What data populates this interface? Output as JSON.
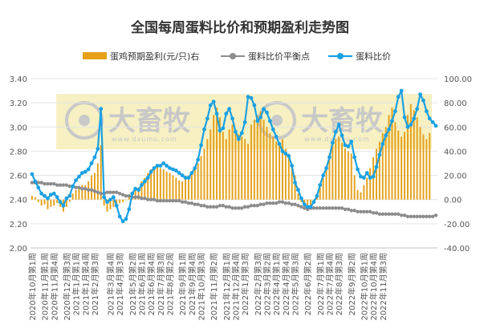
{
  "chart_data": {
    "type": "combo-bar-line",
    "title": "全国每周蛋料比价和预期盈利走势图",
    "legend_position": "top",
    "watermark": {
      "brand": "大畜牧",
      "url": "www.dxumu.com"
    },
    "y_left": {
      "min": 2.0,
      "max": 3.4,
      "step": 0.2,
      "ticks": [
        "2.00",
        "2.20",
        "2.40",
        "2.60",
        "2.80",
        "3.00",
        "3.20",
        "3.40"
      ]
    },
    "y_right": {
      "min": -40,
      "max": 100,
      "step": 20,
      "ticks": [
        "-40.00",
        "-20.00",
        "0.00",
        "20.00",
        "40.00",
        "60.00",
        "80.00",
        "100.00"
      ]
    },
    "x_labels": [
      "2020年10月第1周",
      "2020年11月第1周",
      "2020年11月第4周",
      "2020年12月第3周",
      "2021年1月第1周",
      "2021年1月第4周",
      "2021年2月第3周",
      "2021年3月第4周",
      "2021年4月第3周",
      "2021年5月第2周",
      "2021年6月第1周",
      "2021年6月第4周",
      "2021年7月第3周",
      "2021年8月第2周",
      "2021年9月第1周",
      "2021年9月第4周",
      "2021年10月第3周",
      "2021年11月第2周",
      "2021年12月第1周",
      "2021年12月第4周",
      "2022年1月第3周",
      "2022年2月第3周",
      "2022年3月第2周",
      "2022年4月第1周",
      "2022年4月第4周",
      "2022年5月第3周",
      "2022年6月第2周",
      "2022年7月第1周",
      "2022年7月第4周",
      "2022年8月第3周",
      "2022年9月第2周",
      "2022年10月第1周",
      "2022年10月第4周",
      "2022年11月第3周"
    ],
    "x_label_index": [
      0,
      4,
      7,
      11,
      14,
      17,
      20,
      25,
      28,
      32,
      35,
      38,
      41,
      44,
      48,
      51,
      54,
      58,
      62,
      65,
      68,
      72,
      75,
      78,
      81,
      84,
      88,
      92,
      95,
      98,
      102,
      106,
      109,
      112
    ],
    "series": [
      {
        "name": "蛋鸡预期盈利(元/只)右",
        "type": "bar",
        "axis": "right",
        "color": "#E6A119",
        "values": [
          3,
          2,
          -2,
          -5,
          -4,
          -8,
          -6,
          -5,
          -3,
          -6,
          -10,
          -6,
          -2,
          5,
          8,
          10,
          12,
          12,
          15,
          20,
          22,
          30,
          45,
          -5,
          -10,
          -8,
          -6,
          -5,
          -3,
          -2,
          0,
          2,
          4,
          8,
          10,
          15,
          18,
          22,
          25,
          27,
          28,
          26,
          25,
          23,
          22,
          20,
          18,
          16,
          15,
          17,
          20,
          22,
          25,
          30,
          36,
          42,
          50,
          58,
          70,
          76,
          68,
          56,
          50,
          58,
          62,
          58,
          54,
          52,
          50,
          46,
          62,
          66,
          70,
          73,
          66,
          60,
          55,
          52,
          48,
          45,
          50,
          42,
          38,
          30,
          20,
          5,
          -2,
          -4,
          -6,
          -5,
          0,
          4,
          10,
          18,
          28,
          38,
          46,
          50,
          52,
          47,
          42,
          40,
          38,
          20,
          8,
          6,
          12,
          18,
          26,
          35,
          42,
          48,
          55,
          60,
          70,
          76,
          64,
          57,
          52,
          56,
          70,
          79,
          74,
          68,
          60,
          54,
          50,
          55
        ]
      },
      {
        "name": "蛋料比价平衡点",
        "type": "line",
        "axis": "left",
        "color": "#8C8C8C",
        "values": [
          2.54,
          2.54,
          2.54,
          2.54,
          2.53,
          2.53,
          2.53,
          2.53,
          2.52,
          2.52,
          2.52,
          2.52,
          2.51,
          2.51,
          2.5,
          2.5,
          2.49,
          2.49,
          2.48,
          2.48,
          2.47,
          2.46,
          2.45,
          2.45,
          2.46,
          2.46,
          2.46,
          2.46,
          2.45,
          2.44,
          2.43,
          2.43,
          2.42,
          2.42,
          2.42,
          2.41,
          2.41,
          2.4,
          2.4,
          2.4,
          2.39,
          2.39,
          2.39,
          2.39,
          2.39,
          2.39,
          2.39,
          2.39,
          2.38,
          2.38,
          2.37,
          2.37,
          2.36,
          2.36,
          2.35,
          2.35,
          2.34,
          2.34,
          2.34,
          2.34,
          2.35,
          2.35,
          2.34,
          2.34,
          2.33,
          2.33,
          2.33,
          2.33,
          2.34,
          2.34,
          2.35,
          2.35,
          2.35,
          2.36,
          2.36,
          2.37,
          2.37,
          2.37,
          2.37,
          2.38,
          2.38,
          2.37,
          2.37,
          2.36,
          2.36,
          2.35,
          2.34,
          2.33,
          2.32,
          2.33,
          2.33,
          2.33,
          2.33,
          2.33,
          2.33,
          2.33,
          2.33,
          2.33,
          2.33,
          2.33,
          2.32,
          2.32,
          2.31,
          2.31,
          2.3,
          2.3,
          2.3,
          2.3,
          2.3,
          2.29,
          2.29,
          2.28,
          2.28,
          2.28,
          2.28,
          2.28,
          2.28,
          2.28,
          2.27,
          2.27,
          2.26,
          2.26,
          2.26,
          2.26,
          2.26,
          2.26,
          2.26,
          2.26,
          2.26,
          2.27
        ]
      },
      {
        "name": "蛋料比价",
        "type": "line",
        "axis": "left",
        "color": "#1BA1E2",
        "values": [
          2.61,
          2.55,
          2.5,
          2.45,
          2.43,
          2.41,
          2.44,
          2.45,
          2.42,
          2.38,
          2.35,
          2.41,
          2.43,
          2.51,
          2.56,
          2.59,
          2.62,
          2.63,
          2.65,
          2.7,
          2.75,
          2.82,
          3.15,
          2.42,
          2.38,
          2.4,
          2.42,
          2.35,
          2.26,
          2.22,
          2.24,
          2.32,
          2.45,
          2.49,
          2.48,
          2.52,
          2.55,
          2.58,
          2.63,
          2.66,
          2.68,
          2.68,
          2.7,
          2.68,
          2.66,
          2.65,
          2.64,
          2.62,
          2.6,
          2.58,
          2.58,
          2.62,
          2.66,
          2.73,
          2.85,
          2.98,
          3.07,
          3.18,
          3.21,
          3.11,
          2.97,
          2.99,
          3.11,
          3.15,
          3.07,
          2.96,
          2.9,
          2.95,
          3.04,
          3.25,
          3.24,
          3.18,
          3.05,
          3.08,
          3.15,
          3.12,
          3.05,
          2.98,
          2.92,
          2.86,
          2.8,
          2.78,
          2.76,
          2.68,
          2.54,
          2.48,
          2.41,
          2.36,
          2.34,
          2.34,
          2.38,
          2.43,
          2.52,
          2.6,
          2.66,
          2.75,
          2.87,
          2.96,
          3.02,
          2.93,
          2.85,
          2.84,
          2.88,
          2.75,
          2.65,
          2.59,
          2.58,
          2.62,
          2.58,
          2.59,
          2.67,
          2.77,
          2.86,
          2.93,
          2.98,
          3.05,
          3.13,
          3.25,
          3.3,
          3.08,
          3.0,
          3.02,
          3.07,
          3.15,
          3.27,
          3.22,
          3.13,
          3.07,
          3.04,
          3.01
        ]
      }
    ]
  }
}
